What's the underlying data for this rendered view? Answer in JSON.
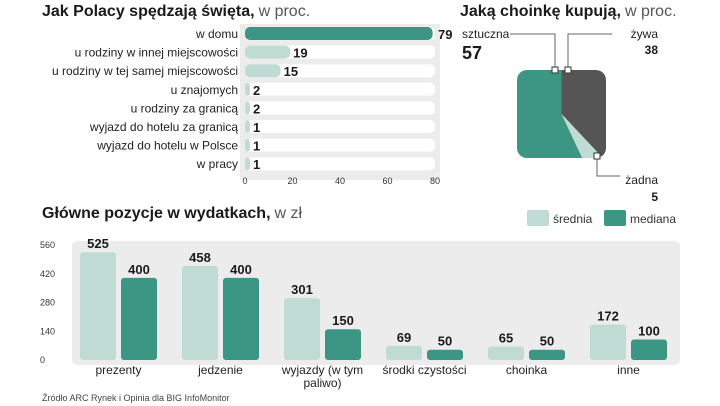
{
  "colors": {
    "teal": "#3c9684",
    "light": "#bfdbd4",
    "dark": "#555555",
    "panel": "#ececec",
    "track": "#ececec"
  },
  "chart_data": [
    {
      "type": "bar",
      "orientation": "horizontal",
      "title": "Jak Polacy spędzają święta,",
      "subtitle": "w proc.",
      "categories": [
        "w domu",
        "u rodziny w innej miejscowości",
        "u rodziny w tej samej miejscowości",
        "u znajomych",
        "u rodziny za granicą",
        "wyjazd do hotelu za granicą",
        "wyjazd do hotelu w Polsce",
        "w pracy"
      ],
      "values": [
        79,
        19,
        15,
        2,
        2,
        1,
        1,
        1
      ],
      "xlim": [
        0,
        80
      ],
      "xticks": [
        "0",
        "20",
        "40",
        "60",
        "80"
      ]
    },
    {
      "type": "pie",
      "title": "Jaką choinkę kupują,",
      "subtitle": "w proc.",
      "labels": [
        "sztuczna",
        "żywa",
        "żadna"
      ],
      "values": [
        57,
        38,
        5
      ]
    },
    {
      "type": "bar",
      "title": "Główne pozycje w wydatkach,",
      "subtitle": "w zł",
      "categories": [
        "prezenty",
        "jedzenie",
        "wyjazdy (w tym paliwo)",
        "środki czystości",
        "choinka",
        "inne"
      ],
      "series": [
        {
          "name": "średnia",
          "values": [
            525,
            458,
            301,
            69,
            65,
            172
          ]
        },
        {
          "name": "mediana",
          "values": [
            400,
            400,
            150,
            50,
            50,
            100
          ]
        }
      ],
      "ylim": [
        0,
        560
      ],
      "yticks": [
        "0",
        "140",
        "280",
        "420",
        "560"
      ]
    }
  ],
  "source": "Źródło ARC Rynek i Opinia dla BIG InfoMonitor"
}
